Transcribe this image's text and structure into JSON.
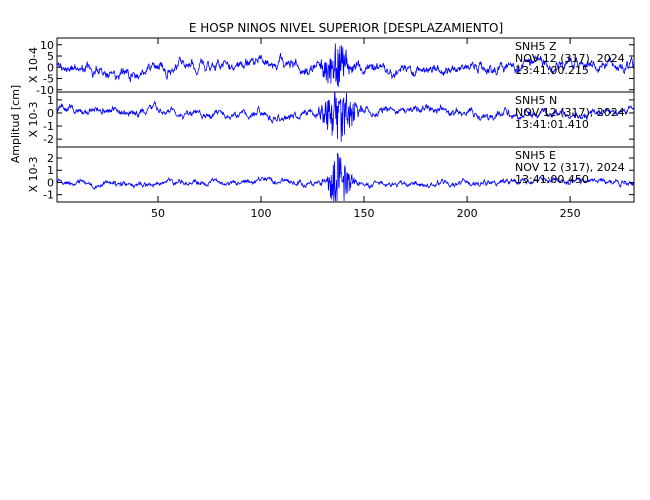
{
  "chart_data": {
    "type": "line",
    "title": "E HOSP NINOS NIVEL SUPERIOR [DESPLAZAMIENTO]",
    "ylabel": "Amplitud [cm]",
    "xlim": [
      1,
      281
    ],
    "x_ticks": [
      50,
      100,
      150,
      200,
      250
    ],
    "line_color": "#0000ff",
    "panels": [
      {
        "channel": "SNH5   Z",
        "date": "NOV 12 (317), 2024",
        "time": "13:41:00.215",
        "scale": "X 10-4",
        "ylim": [
          -11,
          13
        ],
        "y_ticks": [
          {
            "value": 10,
            "label": "10"
          },
          {
            "value": 5,
            "label": "5"
          },
          {
            "value": 0,
            "label": "0"
          },
          {
            "value": -5,
            "label": "-5"
          },
          {
            "value": -10,
            "label": "-10"
          }
        ],
        "events": [
          {
            "center": 137,
            "width": 6,
            "amp": 8.0
          }
        ],
        "seed": 11,
        "noise_amp": 3.8,
        "drift_amp": 1.2,
        "values": []
      },
      {
        "channel": "SNH5   N",
        "date": "NOV 12 (317), 2024",
        "time": "13:41:01.410",
        "scale": "X 10-3",
        "ylim": [
          -2.6,
          1.6
        ],
        "y_ticks": [
          {
            "value": 1,
            "label": "1"
          },
          {
            "value": 0,
            "label": "0"
          },
          {
            "value": -1,
            "label": "-1"
          },
          {
            "value": -2,
            "label": "-2"
          }
        ],
        "events": [
          {
            "center": 138,
            "width": 7,
            "amp": 1.7
          }
        ],
        "seed": 23,
        "noise_amp": 0.45,
        "drift_amp": 0.2,
        "values": []
      },
      {
        "channel": "SNH5   E",
        "date": "NOV 12 (317), 2024",
        "time": "13:41:00.450",
        "scale": "X 10-3",
        "ylim": [
          -1.6,
          2.9
        ],
        "y_ticks": [
          {
            "value": 2,
            "label": "2"
          },
          {
            "value": 1,
            "label": "1"
          },
          {
            "value": 0,
            "label": "0"
          },
          {
            "value": -1,
            "label": "-1"
          }
        ],
        "events": [
          {
            "center": 138,
            "width": 5,
            "amp": 1.9
          }
        ],
        "seed": 37,
        "noise_amp": 0.35,
        "drift_amp": 0.15,
        "values": []
      }
    ]
  }
}
